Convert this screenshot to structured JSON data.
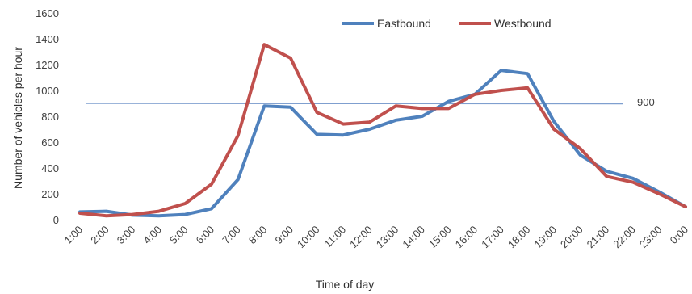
{
  "chart_data": {
    "type": "line",
    "title": "",
    "xlabel": "Time of day",
    "ylabel": "Number of vehicles per hour",
    "ylim": [
      0,
      1600
    ],
    "yticks": [
      "0",
      "200",
      "400",
      "600",
      "800",
      "1000",
      "1200",
      "1400",
      "1600"
    ],
    "x": [
      "1:00",
      "2:00",
      "3:00",
      "4:00",
      "5:00",
      "6:00",
      "7:00",
      "8:00",
      "9:00",
      "10:00",
      "11:00",
      "12:00",
      "13:00",
      "14:00",
      "15:00",
      "16:00",
      "17:00",
      "18:00",
      "19:00",
      "20:00",
      "21:00",
      "22:00",
      "23:00",
      "0:00"
    ],
    "series": [
      {
        "name": "Eastbound",
        "color": "#4f81bd",
        "values": [
          60,
          65,
          35,
          30,
          40,
          85,
          310,
          880,
          870,
          660,
          655,
          700,
          770,
          800,
          915,
          970,
          1155,
          1130,
          760,
          500,
          375,
          320,
          215,
          100
        ]
      },
      {
        "name": "Westbound",
        "color": "#c0504d",
        "values": [
          50,
          30,
          40,
          65,
          125,
          275,
          650,
          1355,
          1250,
          830,
          740,
          755,
          880,
          860,
          860,
          970,
          1000,
          1020,
          700,
          550,
          335,
          290,
          200,
          100
        ]
      }
    ],
    "reference_line": {
      "value": 900,
      "label": "900",
      "color": "#7f9fcf"
    },
    "legend_position": "top-right",
    "grid": false
  }
}
